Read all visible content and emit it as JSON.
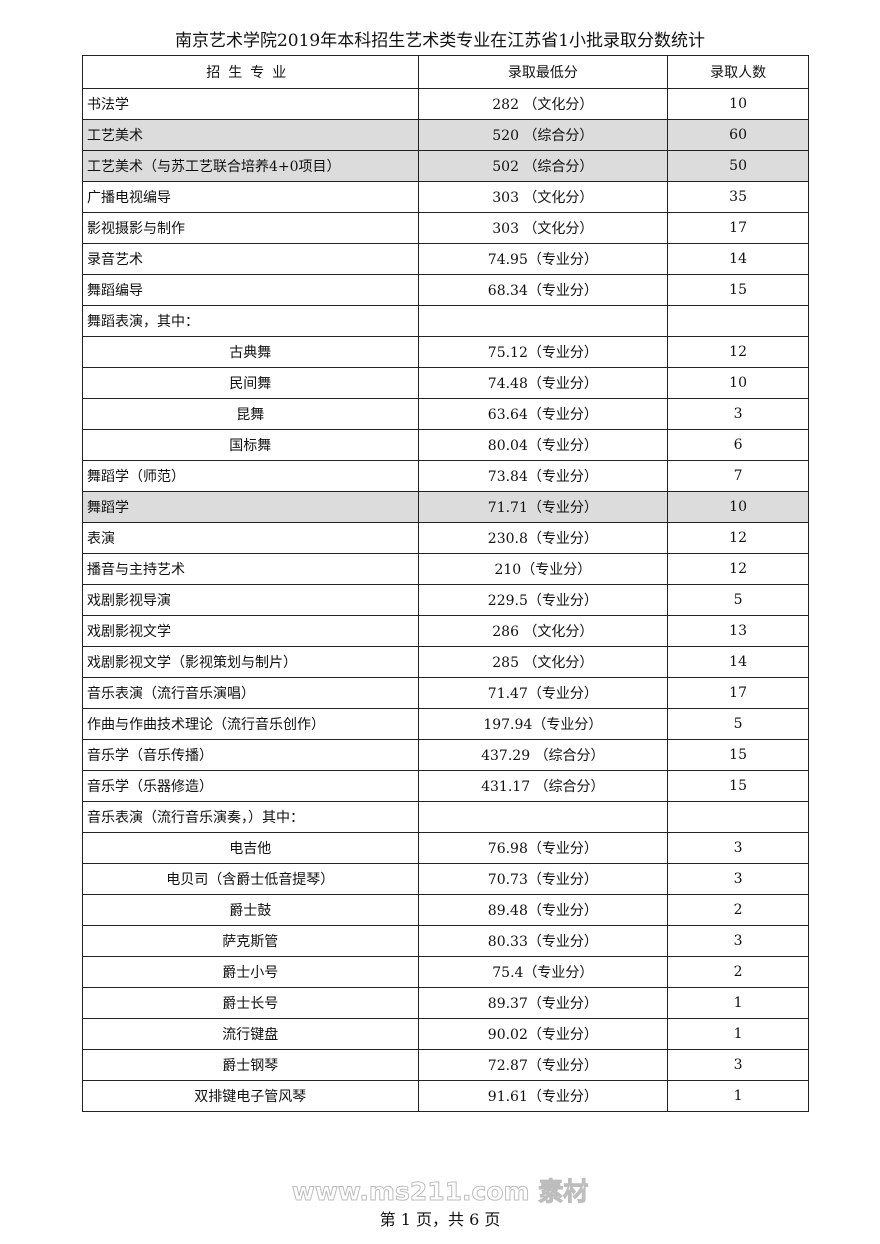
{
  "title": "南京艺术学院2019年本科招生艺术类专业在江苏省1小批录取分数统计",
  "headers": [
    "招生专业",
    "录取最低分",
    "录取人数"
  ],
  "rows": [
    {
      "major": "书法学",
      "score": "282 （文化分）",
      "count": "10",
      "sub": false,
      "highlight": false
    },
    {
      "major": "工艺美术",
      "score": "520 （综合分）",
      "count": "60",
      "sub": false,
      "highlight": true
    },
    {
      "major": "工艺美术（与苏工艺联合培养4+0项目）",
      "score": "502 （综合分）",
      "count": "50",
      "sub": false,
      "highlight": true
    },
    {
      "major": "广播电视编导",
      "score": "303 （文化分）",
      "count": "35",
      "sub": false,
      "highlight": false
    },
    {
      "major": "影视摄影与制作",
      "score": "303 （文化分）",
      "count": "17",
      "sub": false,
      "highlight": false
    },
    {
      "major": "录音艺术",
      "score": "74.95（专业分）",
      "count": "14",
      "sub": false,
      "highlight": false
    },
    {
      "major": "舞蹈编导",
      "score": "68.34（专业分）",
      "count": "15",
      "sub": false,
      "highlight": false
    },
    {
      "major": "舞蹈表演，其中：",
      "score": "",
      "count": "",
      "sub": false,
      "highlight": false
    },
    {
      "major": "古典舞",
      "score": "75.12（专业分）",
      "count": "12",
      "sub": true,
      "highlight": false
    },
    {
      "major": "民间舞",
      "score": "74.48（专业分）",
      "count": "10",
      "sub": true,
      "highlight": false
    },
    {
      "major": "昆舞",
      "score": "63.64（专业分）",
      "count": "3",
      "sub": true,
      "highlight": false
    },
    {
      "major": "国标舞",
      "score": "80.04（专业分）",
      "count": "6",
      "sub": true,
      "highlight": false
    },
    {
      "major": "舞蹈学（师范）",
      "score": "73.84（专业分）",
      "count": "7",
      "sub": false,
      "highlight": false
    },
    {
      "major": "舞蹈学",
      "score": "71.71（专业分）",
      "count": "10",
      "sub": false,
      "highlight": true
    },
    {
      "major": "表演",
      "score": "230.8（专业分）",
      "count": "12",
      "sub": false,
      "highlight": false
    },
    {
      "major": "播音与主持艺术",
      "score": "210（专业分）",
      "count": "12",
      "sub": false,
      "highlight": false
    },
    {
      "major": "戏剧影视导演",
      "score": "229.5（专业分）",
      "count": "5",
      "sub": false,
      "highlight": false
    },
    {
      "major": "戏剧影视文学",
      "score": "286 （文化分）",
      "count": "13",
      "sub": false,
      "highlight": false
    },
    {
      "major": "戏剧影视文学（影视策划与制片）",
      "score": "285 （文化分）",
      "count": "14",
      "sub": false,
      "highlight": false
    },
    {
      "major": "音乐表演（流行音乐演唱）",
      "score": "71.47（专业分）",
      "count": "17",
      "sub": false,
      "highlight": false
    },
    {
      "major": "作曲与作曲技术理论（流行音乐创作）",
      "score": "197.94（专业分）",
      "count": "5",
      "sub": false,
      "highlight": false
    },
    {
      "major": "音乐学（音乐传播）",
      "score": "437.29 （综合分）",
      "count": "15",
      "sub": false,
      "highlight": false
    },
    {
      "major": "音乐学（乐器修造）",
      "score": "431.17 （综合分）",
      "count": "15",
      "sub": false,
      "highlight": false
    },
    {
      "major": "音乐表演（流行音乐演奏，）其中：",
      "score": "",
      "count": "",
      "sub": false,
      "highlight": false
    },
    {
      "major": "电吉他",
      "score": "76.98（专业分）",
      "count": "3",
      "sub": true,
      "highlight": false
    },
    {
      "major": "电贝司（含爵士低音提琴）",
      "score": "70.73（专业分）",
      "count": "3",
      "sub": true,
      "highlight": false
    },
    {
      "major": "爵士鼓",
      "score": "89.48（专业分）",
      "count": "2",
      "sub": true,
      "highlight": false
    },
    {
      "major": "萨克斯管",
      "score": "80.33（专业分）",
      "count": "3",
      "sub": true,
      "highlight": false
    },
    {
      "major": "爵士小号",
      "score": "75.4（专业分）",
      "count": "2",
      "sub": true,
      "highlight": false
    },
    {
      "major": "爵士长号",
      "score": "89.37（专业分）",
      "count": "1",
      "sub": true,
      "highlight": false
    },
    {
      "major": "流行键盘",
      "score": "90.02（专业分）",
      "count": "1",
      "sub": true,
      "highlight": false
    },
    {
      "major": "爵士钢琴",
      "score": "72.87（专业分）",
      "count": "3",
      "sub": true,
      "highlight": false
    },
    {
      "major": "双排键电子管风琴",
      "score": "91.61（专业分）",
      "count": "1",
      "sub": true,
      "highlight": false
    }
  ],
  "highlight_color": "#dcdcdc",
  "watermark": "www.ms211.com 素材",
  "footer": "第 1 页，共 6 页"
}
